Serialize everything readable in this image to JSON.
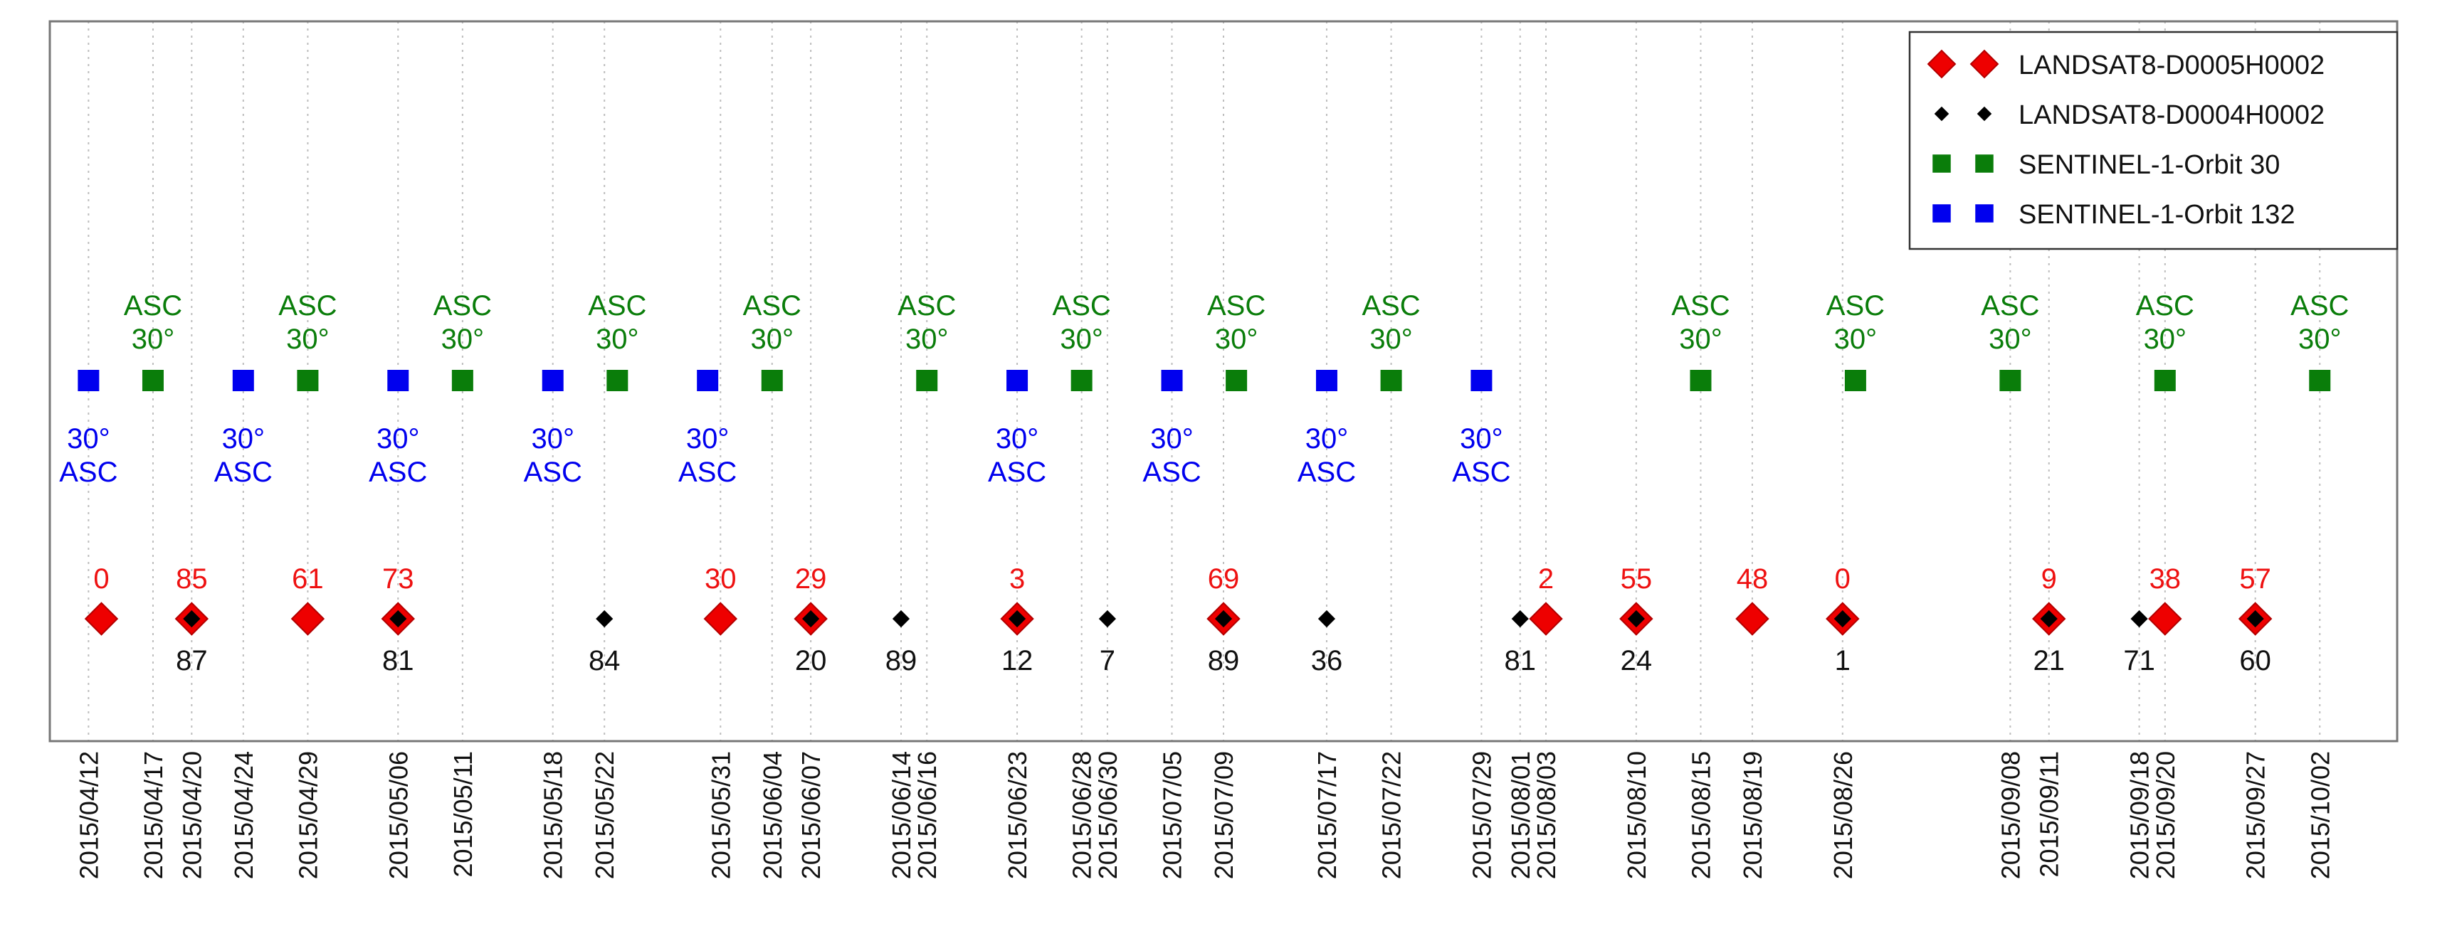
{
  "chart_data": {
    "type": "scatter",
    "title": "",
    "xlabel": "",
    "ylabel": "",
    "x_axis": {
      "type": "date",
      "range": [
        "2015/04/09",
        "2015/10/08"
      ],
      "tick_labels": [
        "2015/04/12",
        "2015/04/17",
        "2015/04/20",
        "2015/04/24",
        "2015/04/29",
        "2015/05/06",
        "2015/05/11",
        "2015/05/18",
        "2015/05/22",
        "2015/05/31",
        "2015/06/04",
        "2015/06/07",
        "2015/06/14",
        "2015/06/16",
        "2015/06/23",
        "2015/06/28",
        "2015/06/30",
        "2015/07/05",
        "2015/07/09",
        "2015/07/17",
        "2015/07/22",
        "2015/07/29",
        "2015/08/01",
        "2015/08/03",
        "2015/08/10",
        "2015/08/15",
        "2015/08/19",
        "2015/08/26",
        "2015/09/08",
        "2015/09/11",
        "2015/09/18",
        "2015/09/20",
        "2015/09/27",
        "2015/10/02"
      ],
      "grid": true
    },
    "legend": {
      "position": "top-right",
      "entries": [
        "LANDSAT8-D0005H0002",
        "LANDSAT8-D0004H0002",
        "SENTINEL-1-Orbit 30",
        "SENTINEL-1-Orbit 132"
      ]
    },
    "series": [
      {
        "name": "LANDSAT8-D0005H0002",
        "marker": "diamond-large",
        "color": "#ee0000",
        "label_position": "above",
        "points": [
          {
            "date": "2015/04/13",
            "value": "0"
          },
          {
            "date": "2015/04/20",
            "value": "85"
          },
          {
            "date": "2015/04/29",
            "value": "61"
          },
          {
            "date": "2015/05/06",
            "value": "73"
          },
          {
            "date": "2015/05/31",
            "value": "30"
          },
          {
            "date": "2015/06/07",
            "value": "29"
          },
          {
            "date": "2015/06/23",
            "value": "3"
          },
          {
            "date": "2015/07/09",
            "value": "69"
          },
          {
            "date": "2015/08/03",
            "value": "2"
          },
          {
            "date": "2015/08/10",
            "value": "55"
          },
          {
            "date": "2015/08/19",
            "value": "48"
          },
          {
            "date": "2015/08/26",
            "value": "0"
          },
          {
            "date": "2015/09/11",
            "value": "9"
          },
          {
            "date": "2015/09/20",
            "value": "38"
          },
          {
            "date": "2015/09/27",
            "value": "57"
          }
        ]
      },
      {
        "name": "LANDSAT8-D0004H0002",
        "marker": "diamond-small",
        "color": "#000000",
        "label_position": "below",
        "points": [
          {
            "date": "2015/04/20",
            "value": "87"
          },
          {
            "date": "2015/05/06",
            "value": "81"
          },
          {
            "date": "2015/05/22",
            "value": "84"
          },
          {
            "date": "2015/06/07",
            "value": "20"
          },
          {
            "date": "2015/06/14",
            "value": "89"
          },
          {
            "date": "2015/06/23",
            "value": "12"
          },
          {
            "date": "2015/06/30",
            "value": "7"
          },
          {
            "date": "2015/07/09",
            "value": "89"
          },
          {
            "date": "2015/07/17",
            "value": "36"
          },
          {
            "date": "2015/08/01",
            "value": "81"
          },
          {
            "date": "2015/08/10",
            "value": "24"
          },
          {
            "date": "2015/08/26",
            "value": "1"
          },
          {
            "date": "2015/09/11",
            "value": "21"
          },
          {
            "date": "2015/09/18",
            "value": "71"
          },
          {
            "date": "2015/09/27",
            "value": "60"
          }
        ]
      },
      {
        "name": "SENTINEL-1-Orbit 30",
        "marker": "square",
        "color": "#0a7d0a",
        "label_position": "above",
        "label_lines": [
          "ASC",
          "30°"
        ],
        "points": [
          {
            "date": "2015/04/17"
          },
          {
            "date": "2015/04/29"
          },
          {
            "date": "2015/05/11"
          },
          {
            "date": "2015/05/23"
          },
          {
            "date": "2015/06/04"
          },
          {
            "date": "2015/06/16"
          },
          {
            "date": "2015/06/28"
          },
          {
            "date": "2015/07/10"
          },
          {
            "date": "2015/07/22"
          },
          {
            "date": "2015/08/15"
          },
          {
            "date": "2015/08/27"
          },
          {
            "date": "2015/09/08"
          },
          {
            "date": "2015/09/20"
          },
          {
            "date": "2015/10/02"
          }
        ]
      },
      {
        "name": "SENTINEL-1-Orbit 132",
        "marker": "square",
        "color": "#0000ee",
        "label_position": "below",
        "label_lines": [
          "30°",
          "ASC"
        ],
        "points": [
          {
            "date": "2015/04/12"
          },
          {
            "date": "2015/04/24"
          },
          {
            "date": "2015/05/06"
          },
          {
            "date": "2015/05/18"
          },
          {
            "date": "2015/05/30"
          },
          {
            "date": "2015/06/23"
          },
          {
            "date": "2015/07/05"
          },
          {
            "date": "2015/07/17"
          },
          {
            "date": "2015/07/29"
          }
        ]
      }
    ]
  }
}
